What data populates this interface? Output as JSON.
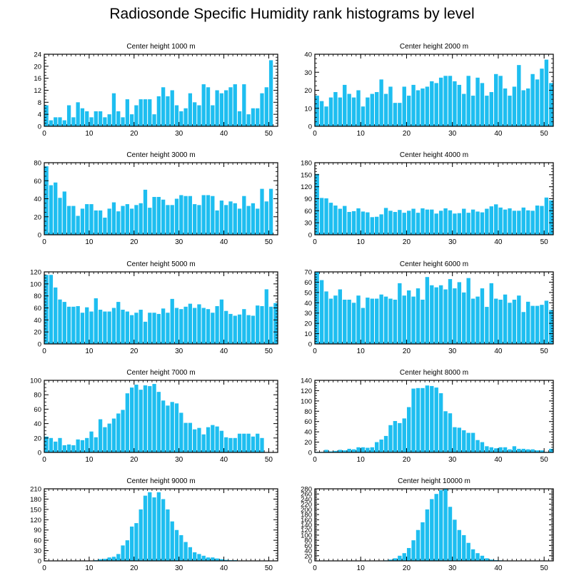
{
  "title": "Radiosonde Specific Humidity rank histograms by level",
  "colors": {
    "bar": "#1ebef0",
    "axis": "#000000",
    "background": "#ffffff"
  },
  "chart_data": [
    {
      "type": "bar",
      "title": "Center height 1000 m",
      "xlim": [
        0,
        52
      ],
      "ylim": [
        0,
        24
      ],
      "xticks": [
        0,
        10,
        20,
        30,
        40,
        50
      ],
      "yticks": [
        0,
        4,
        8,
        12,
        16,
        20,
        24
      ],
      "values": [
        7,
        2,
        3,
        3,
        2,
        7,
        3,
        8,
        6,
        5,
        3,
        5,
        5,
        3,
        4,
        11,
        5,
        3,
        9,
        4,
        7,
        9,
        9,
        9,
        4,
        10,
        13,
        10,
        12,
        7,
        5,
        6,
        11,
        8,
        7,
        14,
        13,
        7,
        12,
        11,
        12,
        13,
        14,
        5,
        14,
        4,
        6,
        6,
        11,
        13,
        22
      ]
    },
    {
      "type": "bar",
      "title": "Center height 2000 m",
      "xlim": [
        0,
        52
      ],
      "ylim": [
        0,
        40
      ],
      "xticks": [
        0,
        10,
        20,
        30,
        40,
        50
      ],
      "yticks": [
        0,
        10,
        20,
        30,
        40
      ],
      "values": [
        17,
        14,
        11,
        16,
        19,
        16,
        23,
        18,
        16,
        20,
        11,
        16,
        18,
        19,
        26,
        18,
        22,
        13,
        13,
        22,
        17,
        23,
        20,
        21,
        22,
        25,
        24,
        27,
        28,
        28,
        25,
        23,
        18,
        28,
        17,
        27,
        24,
        17,
        19,
        29,
        28,
        21,
        17,
        22,
        34,
        20,
        21,
        29,
        26,
        32,
        37,
        24
      ]
    },
    {
      "type": "bar",
      "title": "Center height 3000 m",
      "xlim": [
        0,
        52
      ],
      "ylim": [
        0,
        80
      ],
      "xticks": [
        0,
        10,
        20,
        30,
        40,
        50
      ],
      "yticks": [
        0,
        20,
        40,
        60,
        80
      ],
      "values": [
        76,
        55,
        58,
        41,
        48,
        32,
        32,
        21,
        29,
        34,
        34,
        27,
        27,
        19,
        29,
        36,
        26,
        32,
        34,
        29,
        33,
        35,
        50,
        30,
        42,
        42,
        39,
        33,
        33,
        40,
        44,
        43,
        43,
        34,
        33,
        44,
        44,
        43,
        27,
        38,
        33,
        37,
        35,
        29,
        43,
        32,
        35,
        29,
        51,
        37,
        51
      ]
    },
    {
      "type": "bar",
      "title": "Center height 4000 m",
      "xlim": [
        0,
        52
      ],
      "ylim": [
        0,
        180
      ],
      "xticks": [
        0,
        10,
        20,
        30,
        40,
        50
      ],
      "yticks": [
        0,
        30,
        60,
        90,
        120,
        150,
        180
      ],
      "values": [
        152,
        92,
        91,
        80,
        73,
        65,
        72,
        57,
        59,
        66,
        58,
        56,
        44,
        45,
        51,
        67,
        60,
        57,
        62,
        55,
        60,
        65,
        55,
        66,
        63,
        63,
        53,
        60,
        66,
        61,
        53,
        54,
        65,
        55,
        63,
        58,
        56,
        65,
        71,
        76,
        68,
        63,
        66,
        60,
        60,
        68,
        61,
        60,
        73,
        72,
        93,
        86
      ]
    },
    {
      "type": "bar",
      "title": "Center height 5000 m",
      "xlim": [
        0,
        52
      ],
      "ylim": [
        0,
        120
      ],
      "xticks": [
        0,
        10,
        20,
        30,
        40,
        50
      ],
      "yticks": [
        0,
        20,
        40,
        60,
        80,
        100,
        120
      ],
      "values": [
        115,
        115,
        94,
        74,
        70,
        62,
        62,
        63,
        52,
        61,
        54,
        76,
        57,
        54,
        54,
        60,
        70,
        57,
        54,
        48,
        52,
        57,
        37,
        52,
        52,
        50,
        59,
        52,
        75,
        60,
        58,
        62,
        67,
        60,
        66,
        60,
        58,
        52,
        63,
        74,
        55,
        50,
        47,
        49,
        58,
        48,
        47,
        64,
        63,
        91,
        62,
        68
      ]
    },
    {
      "type": "bar",
      "title": "Center height 6000 m",
      "xlim": [
        0,
        52
      ],
      "ylim": [
        0,
        70
      ],
      "xticks": [
        0,
        10,
        20,
        30,
        40,
        50
      ],
      "yticks": [
        0,
        10,
        20,
        30,
        40,
        50,
        60,
        70
      ],
      "values": [
        70,
        62,
        51,
        44,
        47,
        53,
        43,
        43,
        40,
        47,
        35,
        45,
        44,
        44,
        48,
        46,
        44,
        43,
        59,
        47,
        52,
        46,
        54,
        43,
        65,
        57,
        55,
        57,
        53,
        63,
        54,
        60,
        50,
        64,
        44,
        46,
        54,
        36,
        59,
        44,
        43,
        48,
        40,
        43,
        47,
        31,
        41,
        37,
        37,
        38,
        42,
        33
      ]
    },
    {
      "type": "bar",
      "title": "Center height 7000 m",
      "xlim": [
        0,
        52
      ],
      "ylim": [
        0,
        100
      ],
      "xticks": [
        0,
        10,
        20,
        30,
        40,
        50
      ],
      "yticks": [
        0,
        20,
        40,
        60,
        80,
        100
      ],
      "values": [
        22,
        20,
        15,
        20,
        10,
        11,
        10,
        18,
        17,
        20,
        29,
        21,
        46,
        35,
        40,
        47,
        54,
        59,
        82,
        90,
        94,
        87,
        93,
        92,
        95,
        84,
        72,
        65,
        70,
        68,
        55,
        41,
        41,
        32,
        34,
        25,
        35,
        38,
        36,
        30,
        21,
        20,
        20,
        26,
        26,
        26,
        22,
        26,
        20
      ]
    },
    {
      "type": "bar",
      "title": "Center height 8000 m",
      "xlim": [
        0,
        52
      ],
      "ylim": [
        0,
        140
      ],
      "xticks": [
        0,
        10,
        20,
        30,
        40,
        50
      ],
      "yticks": [
        0,
        20,
        40,
        60,
        80,
        100,
        120,
        140
      ],
      "values": [
        1,
        1,
        5,
        2,
        3,
        5,
        4,
        7,
        6,
        10,
        10,
        9,
        10,
        20,
        25,
        32,
        53,
        61,
        57,
        66,
        88,
        124,
        125,
        125,
        130,
        129,
        126,
        115,
        80,
        76,
        49,
        48,
        43,
        38,
        38,
        24,
        20,
        12,
        10,
        8,
        10,
        10,
        6,
        12,
        7,
        7,
        6,
        6,
        4,
        4,
        1,
        7
      ]
    },
    {
      "type": "bar",
      "title": "Center height 9000 m",
      "xlim": [
        0,
        52
      ],
      "ylim": [
        0,
        210
      ],
      "xticks": [
        0,
        10,
        20,
        30,
        40,
        50
      ],
      "yticks": [
        0,
        30,
        60,
        90,
        120,
        150,
        180,
        210
      ],
      "values": [
        0,
        0,
        0,
        0,
        0,
        0,
        0,
        0,
        0,
        1,
        1,
        2,
        5,
        6,
        10,
        12,
        20,
        45,
        60,
        100,
        110,
        150,
        190,
        200,
        185,
        200,
        180,
        150,
        115,
        90,
        75,
        55,
        40,
        25,
        20,
        15,
        10,
        10,
        7,
        5,
        3,
        2,
        2,
        1,
        1,
        1,
        1,
        1,
        0,
        0,
        0
      ]
    },
    {
      "type": "bar",
      "title": "Center height 10000 m",
      "xlim": [
        0,
        52
      ],
      "ylim": [
        0,
        280
      ],
      "xticks": [
        0,
        10,
        20,
        30,
        40,
        50
      ],
      "yticks": [
        0,
        20,
        40,
        60,
        80,
        100,
        120,
        140,
        160,
        180,
        200,
        220,
        240,
        260,
        280
      ],
      "values": [
        0,
        0,
        0,
        0,
        0,
        0,
        0,
        0,
        0,
        0,
        0,
        0,
        0,
        0,
        1,
        2,
        5,
        10,
        20,
        30,
        50,
        80,
        120,
        150,
        200,
        240,
        260,
        275,
        280,
        210,
        160,
        120,
        100,
        70,
        45,
        30,
        20,
        10,
        5,
        3,
        2,
        1,
        1,
        1,
        0,
        0,
        0,
        0,
        0,
        0,
        0
      ]
    }
  ]
}
